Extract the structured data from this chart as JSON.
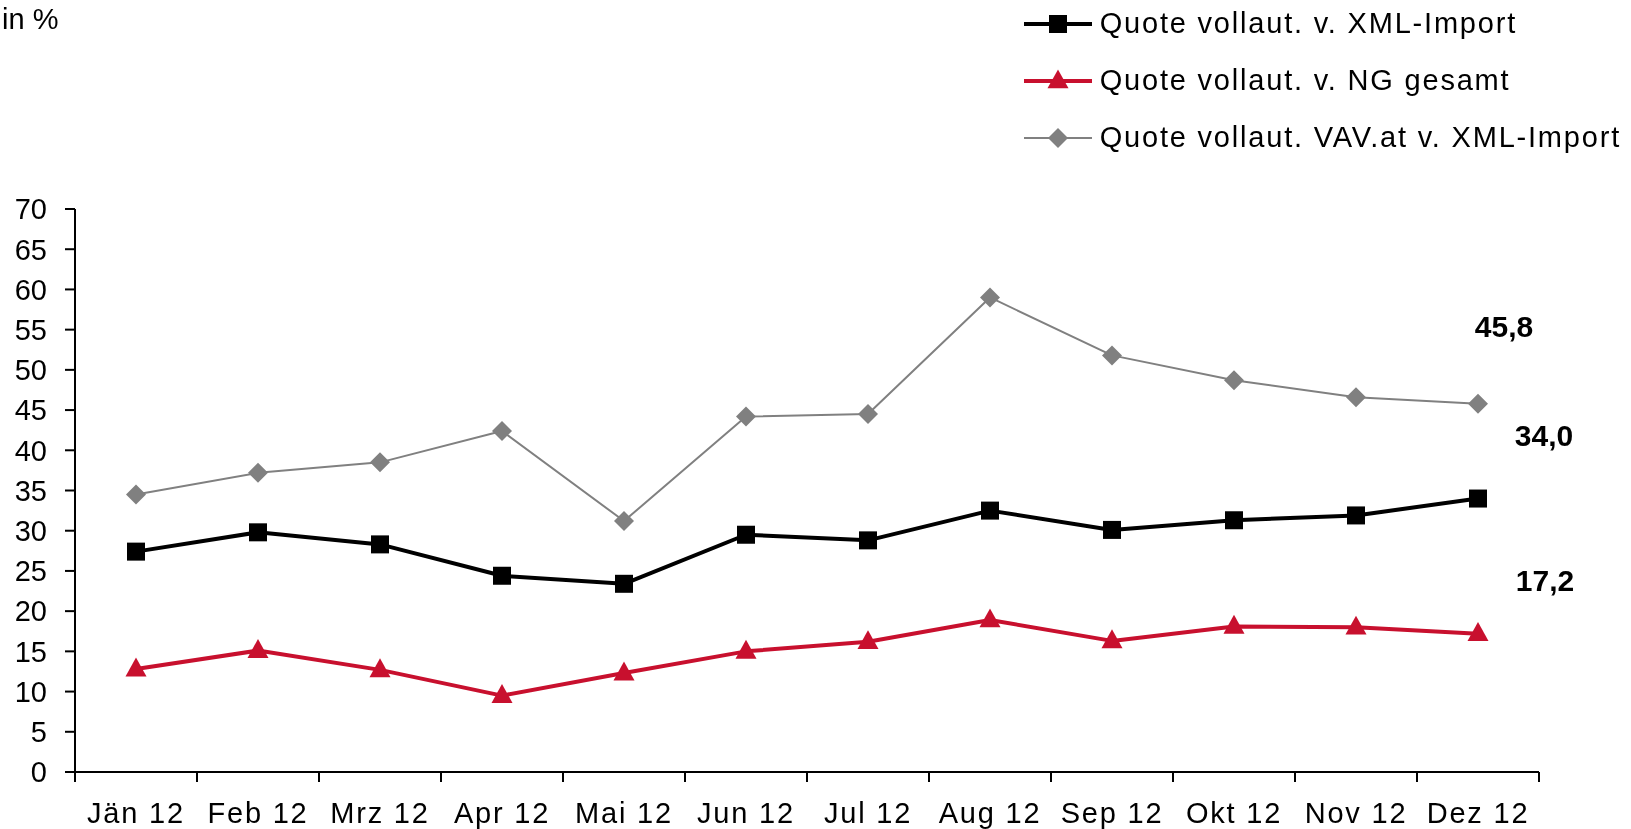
{
  "chart_data": {
    "type": "line",
    "annotations": [
      "in %"
    ],
    "categories": [
      "Jän 12",
      "Feb 12",
      "Mrz 12",
      "Apr 12",
      "Mai 12",
      "Jun 12",
      "Jul 12",
      "Aug 12",
      "Sep 12",
      "Okt 12",
      "Nov 12",
      "Dez 12"
    ],
    "ylim": [
      0,
      70
    ],
    "yticks": [
      0,
      5,
      10,
      15,
      20,
      25,
      30,
      35,
      40,
      45,
      50,
      55,
      60,
      65,
      70
    ],
    "legend": "top right",
    "series": [
      {
        "name": "Quote vollaut. v. XML-Import",
        "color": "#000000",
        "marker": "square",
        "values": [
          27.4,
          29.8,
          28.3,
          24.4,
          23.4,
          29.5,
          28.8,
          32.5,
          30.1,
          31.3,
          31.9,
          34.0
        ],
        "value_labels": [
          null,
          null,
          null,
          null,
          null,
          null,
          null,
          null,
          null,
          null,
          null,
          "34,0"
        ]
      },
      {
        "name": "Quote vollaut. v. NG gesamt",
        "color": "#c8102e",
        "marker": "triangle",
        "values": [
          12.8,
          15.1,
          12.7,
          9.5,
          12.3,
          15.0,
          16.2,
          18.9,
          16.3,
          18.1,
          18.0,
          17.2
        ],
        "value_labels": [
          null,
          null,
          null,
          null,
          null,
          null,
          null,
          null,
          null,
          null,
          null,
          "17,2"
        ]
      },
      {
        "name": "Quote vollaut. VAV.at v. XML-Import",
        "color": "#808080",
        "marker": "diamond",
        "values": [
          34.5,
          37.2,
          38.5,
          42.4,
          31.2,
          44.2,
          44.5,
          59.0,
          51.8,
          48.7,
          46.6,
          45.8
        ],
        "value_labels": [
          null,
          null,
          null,
          null,
          null,
          null,
          null,
          null,
          null,
          null,
          null,
          "45,8"
        ]
      }
    ]
  }
}
